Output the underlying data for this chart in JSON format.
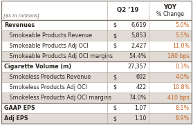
{
  "header_label": "[$s in millions]",
  "header_q2": "Q2 ’19",
  "header_yoy1": "YOY",
  "header_yoy2": "% Change",
  "rows": [
    {
      "label": "Revenues",
      "indent": false,
      "dollar": true,
      "val": "6,619",
      "chg": "5.0%",
      "bold": true,
      "gray": false,
      "bold_border": true
    },
    {
      "label": "   Smokeable Products Revenue",
      "indent": true,
      "dollar": true,
      "val": "5,853",
      "chg": "5.5%",
      "bold": false,
      "gray": true,
      "bold_border": false
    },
    {
      "label": "   Smokeable Products Adj OCI",
      "indent": true,
      "dollar": true,
      "val": "2,427",
      "chg": "11.0%",
      "bold": false,
      "gray": false,
      "bold_border": false
    },
    {
      "label": "   Smokeable Products Adj OCI margins",
      "indent": true,
      "dollar": false,
      "val": "54.4%",
      "chg": "180 bps",
      "bold": false,
      "gray": true,
      "bold_border": false
    },
    {
      "label": "Cigarette Volume (m)",
      "indent": false,
      "dollar": false,
      "val": "27,357",
      "chg": "0.3%",
      "bold": true,
      "gray": false,
      "bold_border": true
    },
    {
      "label": "   Smokeless Products Revenue",
      "indent": true,
      "dollar": true,
      "val": "602",
      "chg": "4.0%",
      "bold": false,
      "gray": true,
      "bold_border": false
    },
    {
      "label": "   Smokeless Products Adj OCI",
      "indent": true,
      "dollar": true,
      "val": "422",
      "chg": "10.8%",
      "bold": false,
      "gray": false,
      "bold_border": false
    },
    {
      "label": "   Smokeless Products Adj OCI margins",
      "indent": true,
      "dollar": false,
      "val": "74.0%",
      "chg": "410 bps",
      "bold": false,
      "gray": true,
      "bold_border": false
    },
    {
      "label": "GAAP EPS",
      "indent": false,
      "dollar": true,
      "val": "1.07",
      "chg": "8.1%",
      "bold": true,
      "gray": false,
      "bold_border": true
    },
    {
      "label": "Adj EPS",
      "indent": false,
      "dollar": true,
      "val": "1.10",
      "chg": "8.9%",
      "bold": true,
      "gray": true,
      "bold_border": false
    }
  ],
  "bg_white": "#ffffff",
  "bg_gray": "#e0dbd4",
  "border_color": "#b8b0a4",
  "border_thick_color": "#7a7068",
  "text_color": "#2a2520",
  "text_gray": "#6a6460",
  "orange_color": "#c86420",
  "font_size": 5.8,
  "header_font_size": 6.2,
  "figw": 2.79,
  "figh": 1.81,
  "dpi": 100
}
